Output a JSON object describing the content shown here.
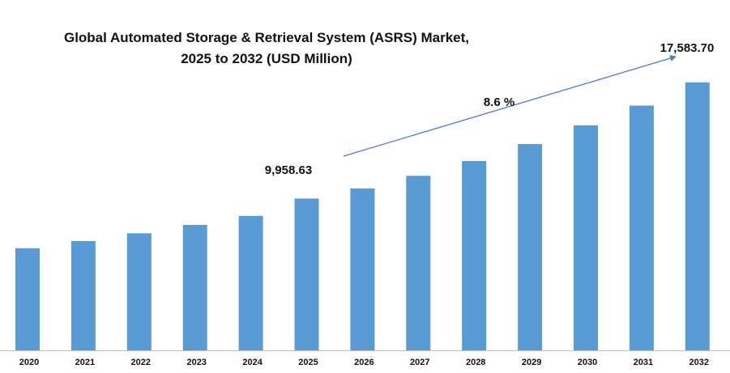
{
  "chart_data": {
    "type": "bar",
    "title_line1": "Global Automated Storage & Retrieval System (ASRS) Market,",
    "title_line2": "2025 to 2032 (USD Million)",
    "categories": [
      "2020",
      "2021",
      "2022",
      "2023",
      "2024",
      "2025",
      "2026",
      "2027",
      "2028",
      "2029",
      "2030",
      "2031",
      "2032"
    ],
    "values": [
      6700,
      7170,
      7680,
      8230,
      8820,
      9958.63,
      10620,
      11450,
      12420,
      13530,
      14760,
      16060,
      17583.7
    ],
    "ylim": [
      0,
      19800
    ],
    "bar_color": "#5b9bd5",
    "annotations": {
      "start_value": "9,958.63",
      "end_value": "17,583.70",
      "cagr": "8.6  %"
    },
    "arrow_color": "#4a7fc1",
    "grid": false,
    "legend": "none"
  }
}
